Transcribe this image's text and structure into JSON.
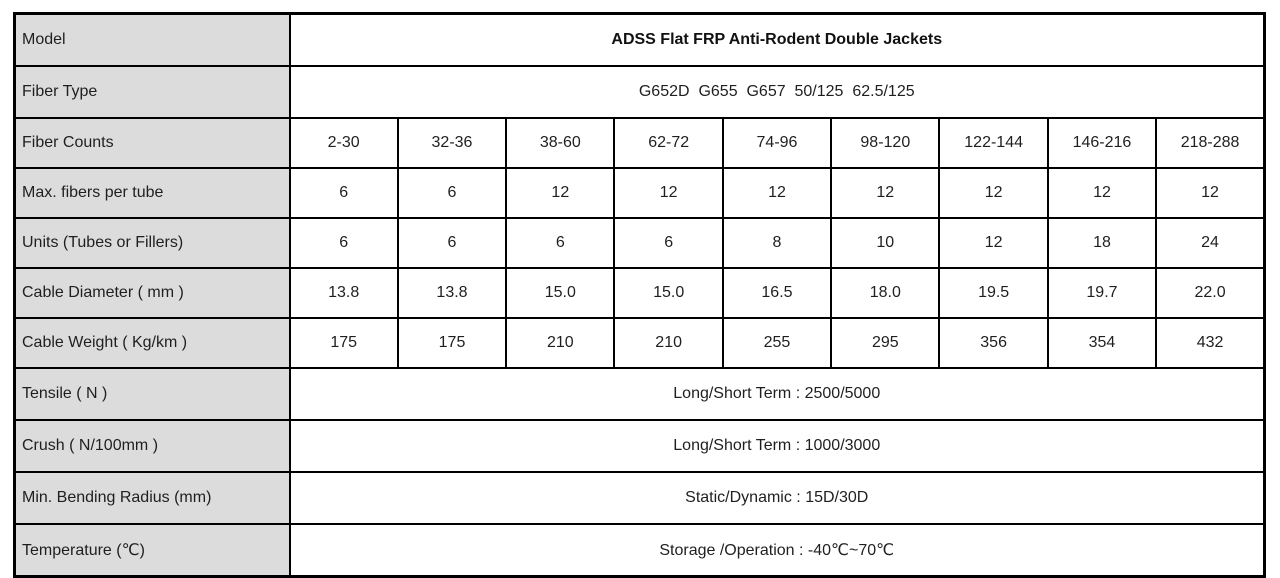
{
  "colors": {
    "label_bg": "#dcdcdc",
    "border": "#000000",
    "text": "#1f1f1f",
    "cell_bg": "#ffffff"
  },
  "table": {
    "rows": [
      {
        "label": "Model",
        "type": "span",
        "value": "ADSS Flat FRP Anti-Rodent Double Jackets"
      },
      {
        "label": "Fiber Type",
        "type": "span",
        "value": "G652D  G655  G657  50/125  62.5/125"
      },
      {
        "label": "Fiber Counts",
        "cells": [
          "2-30",
          "32-36",
          "38-60",
          "62-72",
          "74-96",
          "98-120",
          "122-144",
          "146-216",
          "218-288"
        ]
      },
      {
        "label": "Max. fibers per tube",
        "cells": [
          "6",
          "6",
          "12",
          "12",
          "12",
          "12",
          "12",
          "12",
          "12"
        ]
      },
      {
        "label": "Units (Tubes or Fillers)",
        "cells": [
          "6",
          "6",
          "6",
          "6",
          "8",
          "10",
          "12",
          "18",
          "24"
        ]
      },
      {
        "label": "Cable Diameter ( mm )",
        "cells": [
          "13.8",
          "13.8",
          "15.0",
          "15.0",
          "16.5",
          "18.0",
          "19.5",
          "19.7",
          "22.0"
        ]
      },
      {
        "label": "Cable Weight ( Kg/km )",
        "cells": [
          "175",
          "175",
          "210",
          "210",
          "255",
          "295",
          "356",
          "354",
          "432"
        ]
      },
      {
        "label": "Tensile ( N )",
        "type": "span",
        "value": "Long/Short Term : 2500/5000"
      },
      {
        "label": "Crush ( N/100mm )",
        "type": "span",
        "value": "Long/Short Term : 1000/3000"
      },
      {
        "label": "Min. Bending Radius (mm)",
        "type": "span",
        "value": "Static/Dynamic : 15D/30D"
      },
      {
        "label": "Temperature (℃)",
        "type": "span",
        "value": "Storage /Operation : -40℃~70℃"
      }
    ]
  }
}
